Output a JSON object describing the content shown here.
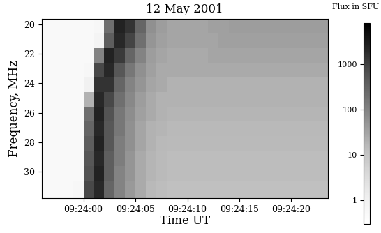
{
  "chart_data": {
    "type": "heatmap",
    "title": "12 May 2001",
    "x_label": "Time UT",
    "y_label": "Frequency, MHz",
    "x_edges": [
      1436,
      1437,
      1438,
      1439,
      1440,
      1441,
      1442,
      1443,
      1444,
      1445,
      1446,
      1447,
      1448,
      1449,
      1450,
      1451,
      1452,
      1453,
      1454,
      1455,
      1456,
      1457,
      1458,
      1459,
      1460,
      1461,
      1462,
      1463,
      1464
    ],
    "y_edges": [
      19.6,
      20.6,
      21.6,
      22.6,
      23.6,
      24.6,
      25.6,
      26.6,
      27.6,
      28.6,
      29.6,
      30.6,
      31.8
    ],
    "cells": [
      [
        0.5,
        0.5,
        0.5,
        0.5,
        0.5,
        0.6,
        200,
        2500,
        1500,
        300,
        60,
        40,
        30,
        30,
        30,
        30,
        35,
        35,
        40,
        40,
        40,
        40,
        40,
        40,
        40,
        40,
        40,
        40
      ],
      [
        0.5,
        0.5,
        0.5,
        0.5,
        0.5,
        0.8,
        400,
        2000,
        900,
        200,
        50,
        35,
        30,
        30,
        30,
        30,
        30,
        35,
        35,
        35,
        35,
        35,
        35,
        35,
        35,
        35,
        35,
        35
      ],
      [
        0.5,
        0.5,
        0.5,
        0.5,
        0.5,
        100,
        2500,
        1200,
        300,
        100,
        40,
        30,
        25,
        25,
        25,
        25,
        30,
        30,
        30,
        30,
        30,
        30,
        30,
        30,
        30,
        30,
        30,
        30
      ],
      [
        0.5,
        0.5,
        0.5,
        0.5,
        0.6,
        800,
        2000,
        500,
        150,
        60,
        35,
        25,
        25,
        25,
        25,
        25,
        25,
        25,
        25,
        25,
        25,
        25,
        25,
        25,
        25,
        25,
        25,
        25
      ],
      [
        0.5,
        0.5,
        0.5,
        0.5,
        1,
        1500,
        1500,
        300,
        100,
        50,
        30,
        25,
        20,
        20,
        20,
        20,
        20,
        20,
        20,
        20,
        20,
        20,
        20,
        20,
        20,
        20,
        20,
        20
      ],
      [
        0.5,
        0.5,
        0.5,
        0.5,
        20,
        2000,
        800,
        200,
        80,
        40,
        25,
        20,
        20,
        20,
        20,
        20,
        20,
        20,
        20,
        20,
        20,
        20,
        20,
        20,
        20,
        20,
        20,
        20
      ],
      [
        0.5,
        0.5,
        0.5,
        0.5,
        200,
        2500,
        600,
        150,
        70,
        35,
        25,
        20,
        18,
        18,
        18,
        18,
        18,
        18,
        18,
        18,
        18,
        18,
        18,
        18,
        18,
        18,
        18,
        18
      ],
      [
        0.5,
        0.5,
        0.5,
        0.5,
        300,
        2000,
        500,
        150,
        60,
        30,
        20,
        18,
        16,
        16,
        16,
        16,
        16,
        16,
        16,
        16,
        16,
        16,
        16,
        16,
        16,
        16,
        16,
        16
      ],
      [
        0.5,
        0.5,
        0.5,
        0.5,
        400,
        2500,
        500,
        120,
        60,
        30,
        20,
        16,
        15,
        15,
        15,
        15,
        15,
        15,
        15,
        15,
        15,
        15,
        15,
        15,
        15,
        15,
        15,
        15
      ],
      [
        0.5,
        0.5,
        0.5,
        0.5,
        500,
        2000,
        400,
        120,
        50,
        25,
        18,
        15,
        14,
        14,
        14,
        14,
        14,
        14,
        14,
        14,
        14,
        14,
        14,
        14,
        14,
        14,
        14,
        14
      ],
      [
        0.5,
        0.5,
        0.5,
        0.5,
        600,
        2500,
        400,
        100,
        50,
        25,
        18,
        15,
        14,
        14,
        14,
        14,
        14,
        14,
        14,
        14,
        14,
        14,
        14,
        14,
        14,
        14,
        14,
        14
      ],
      [
        0.5,
        0.5,
        0.5,
        0.6,
        800,
        2000,
        300,
        100,
        45,
        25,
        16,
        14,
        12,
        12,
        12,
        12,
        12,
        12,
        12,
        12,
        12,
        12,
        12,
        12,
        12,
        12,
        12,
        12
      ]
    ],
    "xlim": [
      1436,
      1463.5
    ],
    "xticks": [
      {
        "value": 1440,
        "label": "09:24:00"
      },
      {
        "value": 1445,
        "label": "09:24:05"
      },
      {
        "value": 1450,
        "label": "09:24:10"
      },
      {
        "value": 1455,
        "label": "09:24:15"
      },
      {
        "value": 1460,
        "label": "09:24:20"
      }
    ],
    "ylim": [
      31.8,
      19.6
    ],
    "yticks": [
      20,
      22,
      24,
      26,
      28,
      30
    ],
    "colorbar": {
      "label": "Flux in SFU",
      "range": [
        0.3,
        8000
      ],
      "ticks": [
        1,
        10,
        100,
        1000
      ],
      "log": true
    }
  }
}
